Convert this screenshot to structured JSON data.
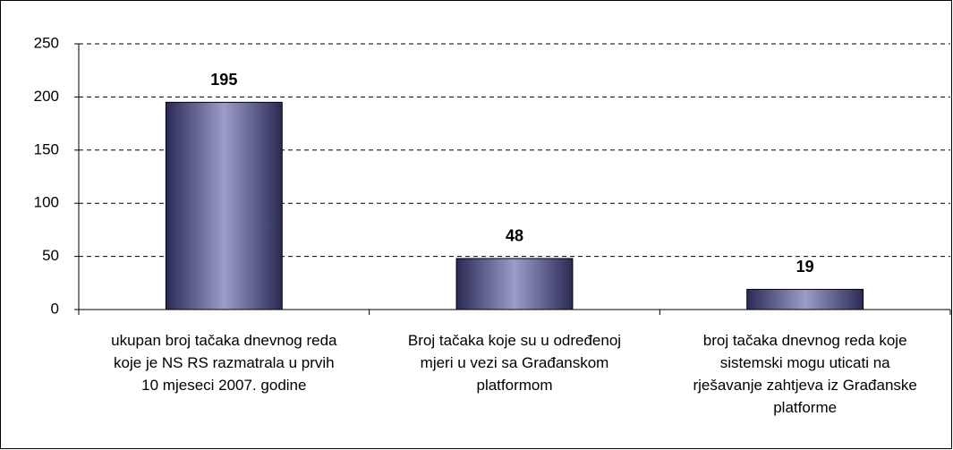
{
  "chart_data": {
    "type": "bar",
    "categories": [
      "ukupan broj tačaka dnevnog reda koje je NS RS razmatrala u prvih 10 mjeseci 2007. godine",
      "Broj tačaka koje su u određenoj mjeri u vezi sa Građanskom platformom",
      "broj tačaka dnevnog reda koje sistemski mogu uticati na rješavanje zahtjeva iz Građanske platforme"
    ],
    "values": [
      195,
      48,
      19
    ],
    "color": "#3a3a6e",
    "ylim": [
      0,
      250
    ],
    "yticks": [
      0,
      50,
      100,
      150,
      200,
      250
    ],
    "grid": true
  }
}
